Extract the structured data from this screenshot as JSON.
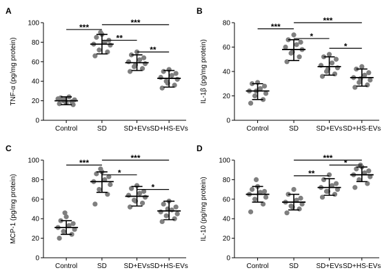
{
  "chart_data": [
    {
      "type": "scatter",
      "panel": "A",
      "ylabel": "TNF-α (pg/mg protein)",
      "ylim": [
        0,
        100
      ],
      "yticks": [
        0,
        20,
        40,
        60,
        80,
        100
      ],
      "categories": [
        "Control",
        "SD",
        "SD+EVs",
        "SD+HS-EVs"
      ],
      "summary": [
        {
          "mean": 20,
          "low": 16,
          "high": 24
        },
        {
          "mean": 78,
          "low": 68,
          "high": 88
        },
        {
          "mean": 59,
          "low": 51,
          "high": 67
        },
        {
          "mean": 43,
          "low": 34,
          "high": 51
        }
      ],
      "points": [
        [
          17,
          19,
          20,
          21,
          22,
          24,
          16,
          23,
          18,
          21
        ],
        [
          66,
          70,
          72,
          77,
          78,
          80,
          82,
          85,
          88,
          90
        ],
        [
          50,
          53,
          55,
          58,
          60,
          62,
          64,
          67,
          70,
          57
        ],
        [
          33,
          36,
          40,
          42,
          44,
          46,
          48,
          50,
          52,
          38
        ]
      ],
      "comparisons": [
        {
          "from": 0,
          "to": 1,
          "label": "***",
          "y": 93
        },
        {
          "from": 1,
          "to": 2,
          "label": "**",
          "y": 82
        },
        {
          "from": 1,
          "to": 3,
          "label": "***",
          "y": 98
        },
        {
          "from": 2,
          "to": 3,
          "label": "**",
          "y": 70
        }
      ]
    },
    {
      "type": "scatter",
      "panel": "B",
      "ylabel": "IL-1β (pg/mg protein)",
      "ylim": [
        0,
        80
      ],
      "yticks": [
        0,
        20,
        40,
        60,
        80
      ],
      "categories": [
        "Control",
        "SD",
        "SD+EVs",
        "SD+HS-EVs"
      ],
      "summary": [
        {
          "mean": 24,
          "low": 17,
          "high": 30
        },
        {
          "mean": 58,
          "low": 49,
          "high": 66
        },
        {
          "mean": 44,
          "low": 37,
          "high": 52
        },
        {
          "mean": 35,
          "low": 28,
          "high": 42
        }
      ],
      "points": [
        [
          14,
          17,
          20,
          22,
          24,
          26,
          28,
          30,
          31,
          24
        ],
        [
          48,
          52,
          55,
          58,
          60,
          62,
          64,
          66,
          70,
          56
        ],
        [
          36,
          38,
          40,
          43,
          45,
          47,
          50,
          52,
          54,
          42
        ],
        [
          27,
          29,
          31,
          33,
          35,
          37,
          39,
          42,
          44,
          34
        ]
      ],
      "comparisons": [
        {
          "from": 0,
          "to": 1,
          "label": "***",
          "y": 75
        },
        {
          "from": 1,
          "to": 2,
          "label": "*",
          "y": 67
        },
        {
          "from": 1,
          "to": 3,
          "label": "***",
          "y": 80
        },
        {
          "from": 2,
          "to": 3,
          "label": "*",
          "y": 59
        }
      ]
    },
    {
      "type": "scatter",
      "panel": "C",
      "ylabel": "MCP-1 (pg/mg protein)",
      "ylim": [
        0,
        100
      ],
      "yticks": [
        0,
        20,
        40,
        60,
        80,
        100
      ],
      "categories": [
        "Control",
        "SD",
        "SD+EVs",
        "SD+HS-EVs"
      ],
      "summary": [
        {
          "mean": 31,
          "low": 24,
          "high": 38
        },
        {
          "mean": 78,
          "low": 67,
          "high": 88
        },
        {
          "mean": 63,
          "low": 53,
          "high": 73
        },
        {
          "mean": 48,
          "low": 39,
          "high": 58
        }
      ],
      "points": [
        [
          20,
          24,
          27,
          29,
          31,
          33,
          35,
          38,
          42,
          46
        ],
        [
          55,
          65,
          70,
          75,
          78,
          80,
          83,
          86,
          88,
          91
        ],
        [
          52,
          56,
          59,
          62,
          64,
          66,
          68,
          71,
          74,
          58
        ],
        [
          37,
          40,
          43,
          45,
          47,
          49,
          52,
          55,
          58,
          50
        ]
      ],
      "comparisons": [
        {
          "from": 0,
          "to": 1,
          "label": "***",
          "y": 95
        },
        {
          "from": 1,
          "to": 2,
          "label": "*",
          "y": 85
        },
        {
          "from": 1,
          "to": 3,
          "label": "***",
          "y": 100
        },
        {
          "from": 2,
          "to": 3,
          "label": "*",
          "y": 70
        }
      ]
    },
    {
      "type": "scatter",
      "panel": "D",
      "ylabel": "IL-10 (pg/mg protein)",
      "ylim": [
        0,
        100
      ],
      "yticks": [
        0,
        20,
        40,
        60,
        80,
        100
      ],
      "categories": [
        "Control",
        "SD",
        "SD+EVs",
        "SD+HS-EVs"
      ],
      "summary": [
        {
          "mean": 65,
          "low": 57,
          "high": 73
        },
        {
          "mean": 57,
          "low": 49,
          "high": 65
        },
        {
          "mean": 72,
          "low": 64,
          "high": 81
        },
        {
          "mean": 85,
          "low": 78,
          "high": 93
        }
      ],
      "points": [
        [
          47,
          55,
          60,
          62,
          65,
          67,
          68,
          70,
          73,
          80
        ],
        [
          46,
          50,
          53,
          55,
          57,
          59,
          61,
          65,
          70,
          52
        ],
        [
          62,
          65,
          68,
          70,
          72,
          74,
          76,
          80,
          85,
          68
        ],
        [
          72,
          76,
          80,
          83,
          85,
          87,
          89,
          91,
          93,
          95
        ]
      ],
      "comparisons": [
        {
          "from": 1,
          "to": 2,
          "label": "**",
          "y": 84
        },
        {
          "from": 1,
          "to": 3,
          "label": "***",
          "y": 100
        },
        {
          "from": 2,
          "to": 3,
          "label": "*",
          "y": 95
        }
      ]
    }
  ],
  "colors": {
    "point": "#7f7f7f",
    "line": "#000000"
  }
}
